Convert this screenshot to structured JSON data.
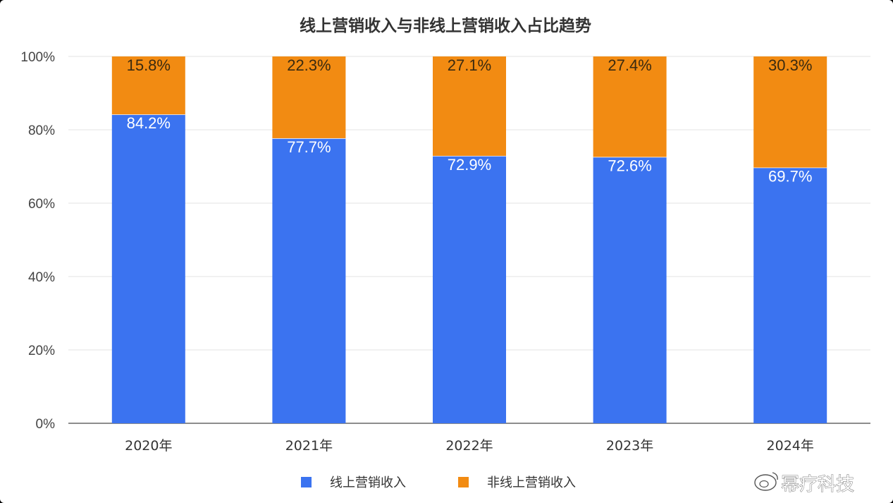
{
  "chart_data": {
    "type": "bar",
    "stacked": true,
    "title": "线上营销收入与非线上营销收入占比趋势",
    "categories": [
      "2020年",
      "2021年",
      "2022年",
      "2023年",
      "2024年"
    ],
    "series": [
      {
        "name": "线上营销收入",
        "color": "#3b73f0",
        "values": [
          84.2,
          77.7,
          72.9,
          72.6,
          69.7
        ],
        "labels": [
          "84.2%",
          "77.7%",
          "72.9%",
          "72.6%",
          "69.7%"
        ]
      },
      {
        "name": "非线上营销收入",
        "color": "#f28b12",
        "values": [
          15.8,
          22.3,
          27.1,
          27.4,
          30.3
        ],
        "labels": [
          "15.8%",
          "22.3%",
          "27.1%",
          "27.4%",
          "30.3%"
        ]
      }
    ],
    "ylim": [
      0,
      100
    ],
    "yticks": [
      "0%",
      "20%",
      "40%",
      "60%",
      "80%",
      "100%"
    ],
    "grid": true,
    "legend_position": "bottom"
  },
  "watermark": {
    "text": "幂疗科技",
    "logo_icon": "weibo-icon"
  }
}
